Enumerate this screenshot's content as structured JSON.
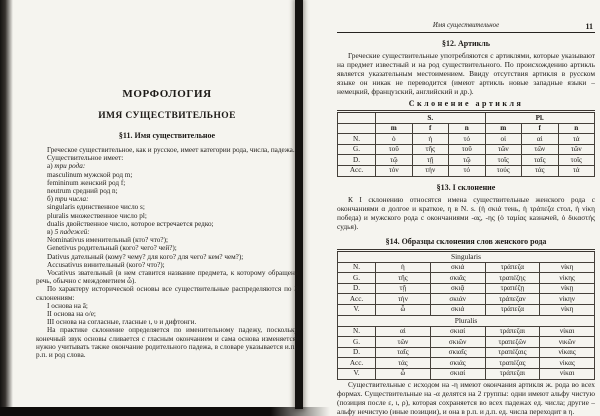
{
  "page": {
    "left": {
      "part_title": "МОРФОЛОГИЯ",
      "chapter_title": "ИМЯ СУЩЕСТВИТЕЛЬНОЕ",
      "section_title": "§11. Имя существительное",
      "intro": "Греческое существительное, как и русское, имеет категории рода, числа, падежа.",
      "has_intro": "Существительное имеет:",
      "genders_prefix": "а) ",
      "genders_label": "три рода:",
      "genders": [
        "masculinum мужской род m;",
        "femininum женский род f;",
        "neutrum средний род n;"
      ],
      "numbers_prefix": "б) ",
      "numbers_label": "три числа:",
      "numbers": [
        "singularis единственное число s;",
        "pluralis множественное число pl;",
        "dualis двойственное число, которое встречается редко;"
      ],
      "cases_prefix": "в) ",
      "cases_label": "5 падежей:",
      "cases": [
        "Nominativus  именительный (кто? что?);",
        "Genetivus  родительный (кого? чего? чей?);",
        "Dativus дательный (кому? чему? для кого? для чего? кем? чем?);",
        "Accusativus винительный (кого? что?);"
      ],
      "vocativus": "Vocativus звательный (в нем ставится название предмета, к которому обращена речь, обычно с междометием ὦ).",
      "stems_intro": "По характеру исторической основы все существительные распределяются по 3 склонениям:",
      "stems": [
        "I  основа на ā;",
        "II основа на о/е;",
        "III основа на согласные, гласные ι, υ и дифтонги."
      ],
      "practice_note": "На практике склонение определяется по именительному падежу, поскольку конечный звук основы сливается с гласным окончанием и сама основа изменяется; нужно учитывать также окончание родительного падежа, в словаре указывается и.п., р.п. и род слова."
    },
    "right": {
      "running_head": "Имя существительное",
      "page_number": "11",
      "s12_title": "§12. Артикль",
      "s12_text": "Греческие существительные употребляются с артиклями, которые указывают на предмет известный и на род существительного. По происхождению артикль является указательным местоимением. Ввиду отсутствия артикля в русском языке он никак не переводится (имеют артикль новые западные языки – немецкий, французский, английский и др.).",
      "article_table": {
        "title": "Склонение артикля",
        "groups": [
          "S.",
          "Pl."
        ],
        "subheaders": [
          "m",
          "f",
          "n",
          "m",
          "f",
          "n"
        ],
        "rows": [
          {
            "c": "N.",
            "v": [
              "ὁ",
              "ἡ",
              "τό",
              "οἱ",
              "αἱ",
              "τά"
            ]
          },
          {
            "c": "G.",
            "v": [
              "τοῦ",
              "τῆς",
              "τοῦ",
              "τῶν",
              "τῶν",
              "τῶν"
            ]
          },
          {
            "c": "D.",
            "v": [
              "τῷ",
              "τῇ",
              "τῷ",
              "τοῖς",
              "ταῖς",
              "τοῖς"
            ]
          },
          {
            "c": "Acc.",
            "v": [
              "τόν",
              "τήν",
              "τό",
              "τούς",
              "τάς",
              "τά"
            ]
          }
        ]
      },
      "s13_title": "§13. I склонение",
      "s13_text": "К I склонению относятся имена существительные женского рода с окончаниями α долгое и краткое, η в N. s. (ἡ σκιά тень, ἡ τράπεζα стол, ἡ νίκη победа) и мужского рода с окончаниями -ας, -ης  (ὁ ταμίας казначей, ὁ δικαστής судья).",
      "s14_title": "§14. Образцы склонения слов женского рода",
      "paradigm_table": {
        "singular_label": "Singularis",
        "plural_label": "Pluralis",
        "singular_rows": [
          {
            "c": "N.",
            "v": [
              "ἡ",
              "σκιά",
              "τράπεζα",
              "νίκη"
            ]
          },
          {
            "c": "G.",
            "v": [
              "τῆς",
              "σκιᾶς",
              "τραπέζης",
              "νίκης"
            ]
          },
          {
            "c": "D.",
            "v": [
              "τῇ",
              "σκιᾷ",
              "τραπέζῃ",
              "νίκῃ"
            ]
          },
          {
            "c": "Acc.",
            "v": [
              "τήν",
              "σκιάν",
              "τράπεζαν",
              "νίκην"
            ]
          },
          {
            "c": "V.",
            "v": [
              "ὦ",
              "σκιά",
              "τράπεζα",
              "νίκη"
            ]
          }
        ],
        "plural_rows": [
          {
            "c": "N.",
            "v": [
              "αἱ",
              "σκιαί",
              "τράπεζαι",
              "νίκαι"
            ]
          },
          {
            "c": "G.",
            "v": [
              "τῶν",
              "σκιῶν",
              "τραπεζῶν",
              "νικῶν"
            ]
          },
          {
            "c": "D.",
            "v": [
              "ταῖς",
              "σκιαῖς",
              "τραπέζαις",
              "νίκαις"
            ]
          },
          {
            "c": "Acc.",
            "v": [
              "τάς",
              "σκιάς",
              "τραπέζας",
              "νίκας"
            ]
          },
          {
            "c": "V.",
            "v": [
              "ὦ",
              "σκιαί",
              "τράπεζαι",
              "νίκαι"
            ]
          }
        ]
      },
      "closing_text": "Существительные с исходом на -η имеют окончания артикля ж. рода во всех формах. Существительные на -α делятся на 2 группы: одни имеют альфу чистую (позиция после ε, ι, ρ), которая сохраняется во всех падежах ед. числа; другие – альфу нечистую (иные позиции), и она в р.п. и д.п. ед. числа переходит в η."
    }
  }
}
